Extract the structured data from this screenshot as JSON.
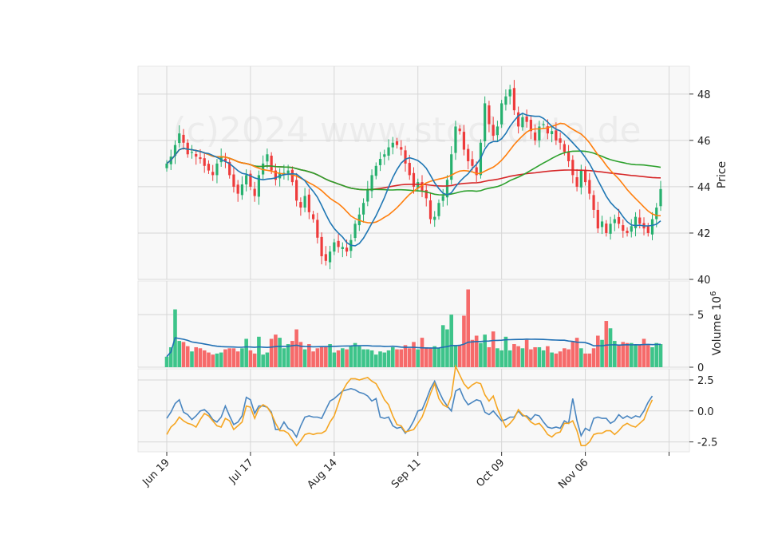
{
  "watermark": "(c)2024 www.stockdata.de",
  "colors": {
    "panel_bg": "#f8f8f8",
    "grid": "#d6d6d6",
    "up": "#26b06e",
    "down": "#ee3b3b",
    "up_vol": "#3dc48a",
    "down_vol": "#f66a6a",
    "ma_blue": "#1f77b4",
    "ma_orange": "#ff7f0e",
    "ma_green": "#2ca02c",
    "ma_red": "#d62728",
    "osc_blue": "#4a86c0",
    "osc_orange": "#f5a623",
    "vol_avg": "#1f6fb4"
  },
  "chart_data": {
    "type": "candlestick",
    "x_ticks": [
      "Jun 19",
      "Jul 17",
      "Aug 14",
      "Sep 11",
      "Oct 09",
      "Nov 06"
    ],
    "price_axis": {
      "label": "Price",
      "ticks": [
        "40",
        "42",
        "44",
        "46",
        "48"
      ],
      "range": [
        40,
        49.2
      ]
    },
    "volume_axis": {
      "label": "Volume",
      "multiplier": "10",
      "exponent": "6",
      "ticks": [
        "0",
        "5"
      ],
      "range": [
        0,
        8.2
      ]
    },
    "oscillator_axis": {
      "ticks": [
        "-2.5",
        "0.0",
        "2.5"
      ],
      "range": [
        -3.3,
        3.4
      ]
    },
    "close": [
      45.0,
      45.3,
      45.8,
      46.3,
      45.9,
      45.4,
      45.5,
      45.3,
      45.2,
      44.9,
      44.7,
      44.5,
      45.0,
      45.3,
      45.1,
      44.5,
      44.0,
      43.7,
      44.1,
      44.5,
      44.0,
      43.6,
      44.5,
      45.0,
      45.4,
      44.7,
      44.3,
      44.6,
      44.6,
      44.7,
      44.2,
      43.4,
      43.1,
      43.6,
      42.9,
      42.6,
      41.8,
      41.0,
      40.8,
      41.2,
      41.6,
      41.4,
      41.4,
      41.2,
      41.7,
      42.4,
      42.8,
      43.3,
      43.9,
      44.5,
      44.9,
      45.2,
      45.4,
      45.7,
      45.9,
      45.8,
      45.6,
      45.0,
      44.5,
      44.0,
      44.2,
      43.8,
      43.5,
      42.6,
      42.7,
      43.3,
      43.6,
      44.3,
      45.4,
      46.6,
      46.4,
      45.6,
      45.1,
      44.9,
      44.5,
      45.9,
      47.6,
      46.7,
      46.2,
      46.6,
      47.6,
      47.9,
      48.2,
      47.3,
      46.6,
      47.0,
      46.8,
      46.4,
      46.0,
      46.6,
      46.7,
      46.3,
      46.4,
      46.0,
      45.9,
      45.5,
      45.1,
      44.5,
      44.0,
      44.7,
      44.2,
      43.7,
      43.0,
      42.2,
      42.5,
      42.0,
      42.4,
      42.6,
      42.4,
      42.1,
      42.0,
      42.3,
      42.7,
      42.4,
      42.2,
      42.0,
      42.6,
      43.1,
      43.9
    ],
    "volume": [
      1.0,
      1.9,
      5.5,
      2.5,
      2.4,
      2.0,
      1.5,
      1.9,
      1.8,
      1.6,
      1.4,
      1.2,
      1.3,
      1.4,
      1.7,
      1.8,
      1.8,
      1.5,
      1.8,
      2.7,
      1.6,
      1.3,
      2.9,
      1.2,
      1.4,
      2.7,
      3.1,
      2.8,
      1.8,
      2.2,
      2.5,
      3.6,
      2.4,
      1.7,
      2.2,
      1.5,
      1.8,
      2.0,
      1.9,
      2.2,
      1.4,
      1.6,
      1.8,
      1.7,
      2.0,
      2.3,
      2.0,
      1.7,
      1.7,
      1.6,
      1.2,
      1.5,
      1.4,
      1.6,
      1.9,
      1.7,
      1.7,
      2.1,
      1.8,
      2.4,
      1.7,
      2.8,
      1.9,
      1.8,
      2.0,
      1.8,
      4.0,
      3.6,
      5.0,
      2.1,
      2.1,
      4.9,
      7.4,
      2.6,
      3.0,
      2.3,
      3.1,
      1.9,
      3.4,
      1.8,
      1.6,
      2.9,
      1.6,
      2.2,
      2.0,
      1.8,
      2.6,
      1.7,
      1.9,
      1.9,
      1.6,
      2.0,
      1.4,
      1.3,
      1.5,
      1.8,
      1.7,
      2.4,
      2.8,
      1.8,
      1.3,
      1.3,
      1.8,
      3.0,
      2.6,
      4.4,
      3.7,
      2.5,
      2.1,
      2.4,
      2.3,
      2.3,
      2.1,
      2.1,
      2.7,
      2.1,
      1.9,
      2.3,
      2.2
    ]
  },
  "oscillator": {
    "blue": [
      -0.6,
      -0.1,
      0.6,
      0.9,
      -0.1,
      -0.3,
      -0.7,
      -0.4,
      0.0,
      0.1,
      -0.2,
      -0.7,
      -0.9,
      -0.5,
      0.4,
      -0.4,
      -1.1,
      -0.9,
      -0.4,
      1.1,
      0.9,
      -0.2,
      0.4,
      0.4,
      0.3,
      -0.1,
      -1.5,
      -1.5,
      -0.9,
      -1.4,
      -1.6,
      -2.1,
      -1.2,
      -0.5,
      -0.4,
      -0.5,
      -0.5,
      -0.6,
      0.1,
      0.8,
      1.0,
      1.3,
      1.6,
      1.7,
      1.8,
      1.7,
      1.5,
      1.4,
      1.2,
      0.8,
      1.0,
      -0.5,
      -0.6,
      -0.5,
      -1.2,
      -1.4,
      -1.3,
      -1.8,
      -1.4,
      -0.8,
      0.0,
      0.1,
      0.9,
      1.8,
      2.4,
      1.6,
      0.9,
      0.4,
      0.0,
      1.6,
      1.8,
      1.0,
      0.5,
      0.7,
      0.9,
      0.8,
      -0.1,
      -0.3,
      0.0,
      -0.4,
      -0.8,
      -0.7,
      -0.5,
      -0.5,
      0.0,
      -0.4,
      -0.4,
      -0.7,
      -0.3,
      -0.4,
      -0.9,
      -1.3,
      -1.4,
      -1.3,
      -1.4,
      -0.8,
      -1.0,
      1.0,
      -0.8,
      -2.0,
      -1.4,
      -1.6,
      -0.6,
      -0.5,
      -0.6,
      -0.6,
      -1.0,
      -0.8,
      -0.3,
      -0.6,
      -0.4,
      -0.6,
      -0.4,
      -0.5,
      0.0,
      0.7,
      1.2
    ],
    "orange": [
      -1.9,
      -1.3,
      -1.0,
      -0.5,
      -0.8,
      -1.0,
      -1.1,
      -1.3,
      -0.7,
      -0.2,
      -0.4,
      -0.8,
      -1.2,
      -1.3,
      -0.6,
      -0.8,
      -1.5,
      -1.2,
      -0.9,
      0.4,
      0.3,
      -0.6,
      0.2,
      0.5,
      0.3,
      -0.2,
      -1.0,
      -1.6,
      -1.6,
      -1.8,
      -2.3,
      -2.8,
      -2.4,
      -1.9,
      -1.8,
      -1.9,
      -1.8,
      -1.8,
      -1.6,
      -0.9,
      -0.4,
      0.6,
      1.6,
      2.2,
      2.6,
      2.6,
      2.5,
      2.6,
      2.7,
      2.4,
      2.2,
      1.6,
      0.9,
      0.5,
      -0.4,
      -1.1,
      -1.2,
      -1.7,
      -1.6,
      -1.5,
      -1.0,
      -0.5,
      0.4,
      1.4,
      2.2,
      1.0,
      0.5,
      0.3,
      1.2,
      3.6,
      2.9,
      2.2,
      1.8,
      2.1,
      2.3,
      2.2,
      1.3,
      0.8,
      1.2,
      0.2,
      -0.6,
      -1.3,
      -1.0,
      -0.6,
      0.1,
      -0.3,
      -0.5,
      -0.9,
      -1.1,
      -1.0,
      -1.4,
      -1.9,
      -2.1,
      -1.8,
      -1.7,
      -1.0,
      -1.0,
      -0.8,
      -1.6,
      -2.8,
      -2.8,
      -2.5,
      -1.9,
      -1.8,
      -1.8,
      -1.6,
      -1.6,
      -1.9,
      -1.6,
      -1.2,
      -1.0,
      -1.2,
      -1.3,
      -1.0,
      -0.7,
      0.2,
      0.9
    ]
  }
}
